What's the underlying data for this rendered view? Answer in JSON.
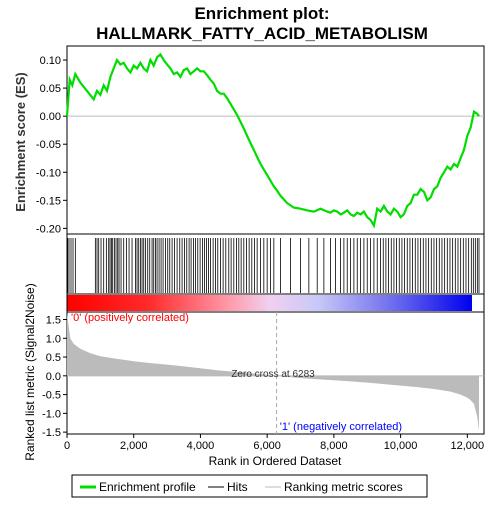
{
  "title_line1": "Enrichment plot:",
  "title_line2": "HALLMARK_FATTY_ACID_METABOLISM",
  "chart_data": {
    "type": "line",
    "series": [
      {
        "name": "Enrichment profile",
        "color": "#00dd00",
        "x": [
          0,
          80,
          160,
          250,
          400,
          600,
          800,
          900,
          1000,
          1100,
          1200,
          1300,
          1400,
          1500,
          1600,
          1700,
          1800,
          1900,
          2000,
          2100,
          2200,
          2300,
          2400,
          2500,
          2600,
          2700,
          2800,
          2900,
          3000,
          3100,
          3200,
          3300,
          3400,
          3500,
          3600,
          3700,
          3800,
          3900,
          4000,
          4100,
          4200,
          4300,
          4400,
          4500,
          4600,
          4700,
          4800,
          4900,
          5000,
          5100,
          5200,
          5300,
          5400,
          5500,
          5600,
          5700,
          5800,
          5900,
          6000,
          6100,
          6200,
          6300,
          6400,
          6600,
          6800,
          7000,
          7200,
          7400,
          7600,
          7800,
          7900,
          8000,
          8100,
          8200,
          8300,
          8400,
          8500,
          8600,
          8700,
          8800,
          8900,
          9000,
          9100,
          9200,
          9300,
          9400,
          9500,
          9600,
          9700,
          9800,
          9900,
          10000,
          10100,
          10200,
          10300,
          10400,
          10500,
          10600,
          10700,
          10800,
          10900,
          11000,
          11100,
          11200,
          11300,
          11400,
          11500,
          11600,
          11700,
          11800,
          11900,
          12000,
          12100,
          12200,
          12250,
          12300,
          12350
        ],
        "y": [
          0.0,
          0.065,
          0.055,
          0.075,
          0.06,
          0.045,
          0.03,
          0.045,
          0.038,
          0.055,
          0.045,
          0.07,
          0.085,
          0.1,
          0.092,
          0.095,
          0.085,
          0.078,
          0.09,
          0.085,
          0.095,
          0.085,
          0.08,
          0.1,
          0.09,
          0.105,
          0.11,
          0.1,
          0.092,
          0.085,
          0.075,
          0.078,
          0.07,
          0.082,
          0.085,
          0.075,
          0.08,
          0.085,
          0.08,
          0.08,
          0.073,
          0.065,
          0.058,
          0.045,
          0.04,
          0.04,
          0.032,
          0.022,
          0.012,
          0.002,
          -0.01,
          -0.022,
          -0.035,
          -0.048,
          -0.06,
          -0.073,
          -0.085,
          -0.095,
          -0.105,
          -0.115,
          -0.125,
          -0.133,
          -0.142,
          -0.155,
          -0.163,
          -0.165,
          -0.168,
          -0.17,
          -0.165,
          -0.17,
          -0.172,
          -0.168,
          -0.17,
          -0.175,
          -0.172,
          -0.168,
          -0.175,
          -0.178,
          -0.172,
          -0.175,
          -0.17,
          -0.18,
          -0.185,
          -0.195,
          -0.165,
          -0.17,
          -0.16,
          -0.17,
          -0.175,
          -0.165,
          -0.17,
          -0.18,
          -0.175,
          -0.16,
          -0.155,
          -0.14,
          -0.14,
          -0.13,
          -0.135,
          -0.15,
          -0.145,
          -0.13,
          -0.125,
          -0.11,
          -0.1,
          -0.09,
          -0.095,
          -0.085,
          -0.09,
          -0.075,
          -0.06,
          -0.035,
          -0.02,
          0.008,
          0.006,
          0.004,
          0.0
        ]
      }
    ],
    "hits_x": [
      20,
      60,
      120,
      180,
      250,
      850,
      900,
      950,
      1020,
      1100,
      1180,
      1250,
      1290,
      1330,
      1370,
      1420,
      1470,
      1520,
      1560,
      1620,
      1700,
      1780,
      1860,
      1950,
      2050,
      2100,
      2150,
      2200,
      2250,
      2300,
      2350,
      2420,
      2480,
      2550,
      2600,
      2650,
      2700,
      2760,
      2820,
      2880,
      2950,
      3020,
      3080,
      3150,
      3220,
      3300,
      3380,
      3450,
      3520,
      3590,
      3660,
      3720,
      3790,
      3850,
      3920,
      3990,
      4060,
      4120,
      4180,
      4240,
      4300,
      4380,
      4450,
      4520,
      4600,
      4680,
      4760,
      4850,
      4920,
      5000,
      5080,
      5150,
      5220,
      5300,
      5380,
      5460,
      5540,
      5620,
      5700,
      5800,
      5900,
      6000,
      6100,
      6200,
      6400,
      6700,
      7000,
      7250,
      7500,
      7700,
      7900,
      8050,
      8200,
      8300,
      8400,
      8500,
      8600,
      8700,
      8800,
      8900,
      9000,
      9100,
      9200,
      9300,
      9400,
      9480,
      9560,
      9640,
      9720,
      9800,
      9880,
      9960,
      10040,
      10120,
      10200,
      10280,
      10360,
      10440,
      10520,
      10600,
      10680,
      10760,
      10840,
      10920,
      11000,
      11080,
      11160,
      11240,
      11320,
      11400,
      11480,
      11560,
      11640,
      11720,
      11800,
      11880,
      11960,
      12040,
      12120,
      12180,
      12240,
      12300,
      12350
    ],
    "ranked_metric": {
      "x": [
        0,
        100,
        200,
        400,
        700,
        1000,
        1500,
        2000,
        2500,
        3000,
        3500,
        4000,
        4500,
        5000,
        5500,
        6000,
        6283,
        6500,
        7000,
        7500,
        8000,
        8500,
        9000,
        9500,
        10000,
        10500,
        11000,
        11500,
        11800,
        12000,
        12100,
        12200,
        12300,
        12350
      ],
      "y": [
        1.65,
        1.0,
        0.85,
        0.72,
        0.6,
        0.52,
        0.45,
        0.39,
        0.34,
        0.3,
        0.25,
        0.2,
        0.15,
        0.11,
        0.07,
        0.03,
        0.0,
        -0.02,
        -0.06,
        -0.09,
        -0.12,
        -0.15,
        -0.18,
        -0.22,
        -0.26,
        -0.3,
        -0.35,
        -0.42,
        -0.5,
        -0.58,
        -0.65,
        -0.75,
        -1.1,
        -1.45
      ]
    },
    "x_ticks": [
      "0",
      "2,000",
      "4,000",
      "6,000",
      "8,000",
      "10,000",
      "12,000"
    ],
    "x_tick_values": [
      0,
      2000,
      4000,
      6000,
      8000,
      10000,
      12000
    ],
    "xlim": [
      0,
      12500
    ],
    "es_ylim": [
      -0.21,
      0.125
    ],
    "es_ticks": [
      "0.10",
      "0.05",
      "0.00",
      "-0.05",
      "-0.10",
      "-0.15",
      "-0.20"
    ],
    "es_tick_values": [
      0.1,
      0.05,
      0.0,
      -0.05,
      -0.1,
      -0.15,
      -0.2
    ],
    "metric_ylim": [
      -1.55,
      1.7
    ],
    "metric_ticks": [
      "1.5",
      "1.0",
      "0.5",
      "0.0",
      "-0.5",
      "-1.0",
      "-1.5"
    ],
    "metric_tick_values": [
      1.5,
      1.0,
      0.5,
      0.0,
      -0.5,
      -1.0,
      -1.5
    ],
    "xlabel": "Rank in Ordered Dataset",
    "ylabel_es": "Enrichment score (ES)",
    "ylabel_metric": "Ranked list metric (Signal2Noise)",
    "zero_cross_label": "Zero cross at 6283",
    "zero_cross_value": 6283,
    "positive_label": "'0' (positively correlated)",
    "negative_label": "'1' (negatively correlated)",
    "colors": {
      "profile": "#00dd00",
      "positive_text": "#ff0000",
      "negative_text": "#0000ff",
      "metric_fill": "#bbbbbb",
      "zero_line": "#aaaaaa",
      "grid": "#bbbbbb"
    }
  },
  "legend": {
    "items": [
      {
        "label": "Enrichment profile",
        "color": "#00dd00"
      },
      {
        "label": "Hits",
        "color": "#000000"
      },
      {
        "label": "Ranking metric scores",
        "color": "#bbbbbb"
      }
    ]
  }
}
